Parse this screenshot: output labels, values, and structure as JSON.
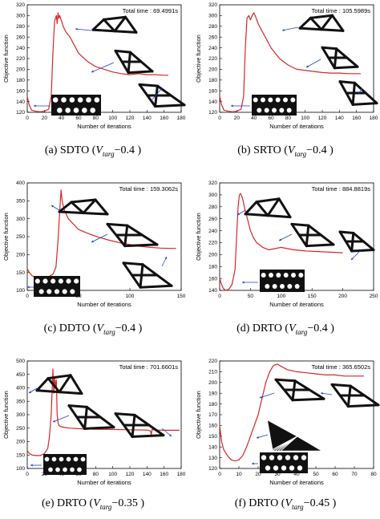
{
  "colors": {
    "curve": "#d62728",
    "arrow": "#1f3fd6",
    "axis": "#000000",
    "struct": "#111111"
  },
  "chart_data": [
    {
      "type": "line",
      "panel": "a",
      "caption_label": "(a) SDTO (",
      "caption_var": "V",
      "caption_sub": "targ",
      "caption_value": "−0.4 )",
      "annotation": "Total time : 69.4991s",
      "xlabel": "Number of iterations",
      "ylabel": "Objective function",
      "xlim": [
        0,
        180
      ],
      "ylim": [
        120,
        320
      ],
      "xticks": [
        0,
        20,
        40,
        60,
        80,
        100,
        120,
        140,
        160,
        180
      ],
      "yticks": [
        120,
        140,
        160,
        180,
        200,
        220,
        240,
        260,
        280,
        300,
        320
      ],
      "x": [
        0,
        2,
        5,
        10,
        15,
        20,
        25,
        28,
        30,
        32,
        34,
        35,
        36,
        37,
        38,
        40,
        42,
        45,
        50,
        55,
        60,
        70,
        80,
        90,
        100,
        110,
        120,
        130,
        140,
        150,
        160,
        165
      ],
      "y": [
        150,
        135,
        124,
        122,
        121,
        122,
        126,
        150,
        230,
        290,
        300,
        285,
        305,
        295,
        300,
        290,
        280,
        270,
        260,
        245,
        230,
        215,
        205,
        200,
        195,
        192,
        190,
        192,
        190,
        190,
        189,
        189
      ]
    },
    {
      "type": "line",
      "panel": "b",
      "caption_label": "(b) SRTO (",
      "caption_var": "V",
      "caption_sub": "targ",
      "caption_value": "−0.4 )",
      "annotation": "Total time : 105.5989s",
      "xlabel": "Number of iterations",
      "ylabel": "Objective function",
      "xlim": [
        0,
        180
      ],
      "ylim": [
        120,
        320
      ],
      "xticks": [
        0,
        20,
        40,
        60,
        80,
        100,
        120,
        140,
        160,
        180
      ],
      "yticks": [
        120,
        140,
        160,
        180,
        200,
        220,
        240,
        260,
        280,
        300,
        320
      ],
      "x": [
        0,
        2,
        5,
        10,
        15,
        20,
        25,
        28,
        30,
        32,
        34,
        36,
        38,
        40,
        42,
        45,
        50,
        55,
        60,
        70,
        80,
        90,
        100,
        110,
        120,
        130,
        140,
        150,
        160,
        165
      ],
      "y": [
        150,
        135,
        124,
        122,
        121,
        122,
        126,
        150,
        240,
        295,
        300,
        292,
        300,
        305,
        298,
        285,
        270,
        255,
        240,
        220,
        208,
        200,
        198,
        196,
        194,
        193,
        193,
        192,
        192,
        192
      ]
    },
    {
      "type": "line",
      "panel": "c",
      "caption_label": "(c) DDTO (",
      "caption_var": "V",
      "caption_sub": "targ",
      "caption_value": "−0.4 )",
      "annotation": "Total time : 159.3062s",
      "xlabel": "Number of iterations",
      "ylabel": "Objective function",
      "xlim": [
        0,
        150
      ],
      "ylim": [
        100,
        400
      ],
      "xticks": [
        0,
        50,
        100,
        150
      ],
      "yticks": [
        100,
        150,
        200,
        250,
        300,
        350,
        400
      ],
      "x": [
        0,
        2,
        5,
        10,
        15,
        20,
        25,
        28,
        30,
        32,
        33,
        34,
        36,
        40,
        45,
        50,
        60,
        70,
        80,
        90,
        100,
        110,
        120,
        130,
        140,
        145
      ],
      "y": [
        160,
        150,
        140,
        135,
        135,
        137,
        145,
        165,
        240,
        340,
        380,
        350,
        325,
        300,
        285,
        270,
        258,
        248,
        240,
        233,
        228,
        223,
        220,
        218,
        217,
        217
      ]
    },
    {
      "type": "line",
      "panel": "d",
      "caption_label": "(d) DRTO (",
      "caption_var": "V",
      "caption_sub": "targ",
      "caption_value": "−0.4 )",
      "annotation": "Total time : 884.8819s",
      "xlabel": "Number of iterations",
      "ylabel": "Objective function",
      "xlim": [
        0,
        250
      ],
      "ylim": [
        140,
        320
      ],
      "xticks": [
        0,
        50,
        100,
        150,
        200,
        250
      ],
      "yticks": [
        140,
        160,
        180,
        200,
        220,
        240,
        260,
        280,
        300,
        320
      ],
      "x": [
        0,
        3,
        6,
        10,
        15,
        20,
        25,
        28,
        30,
        32,
        34,
        36,
        38,
        40,
        45,
        50,
        55,
        60,
        70,
        80,
        90,
        100,
        110,
        120,
        140,
        160,
        180,
        200
      ],
      "y": [
        160,
        150,
        143,
        140,
        142,
        150,
        175,
        240,
        280,
        300,
        302,
        298,
        290,
        280,
        260,
        240,
        228,
        220,
        212,
        208,
        210,
        212,
        210,
        208,
        206,
        205,
        204,
        203
      ]
    },
    {
      "type": "line",
      "panel": "e",
      "caption_label": "(e) DRTO (",
      "caption_var": "V",
      "caption_sub": "targ",
      "caption_value": "−0.35 )",
      "annotation": "Total time : 701.6601s",
      "xlabel": "Number of iterations",
      "ylabel": "Objective function",
      "xlim": [
        0,
        180
      ],
      "ylim": [
        100,
        500
      ],
      "xticks": [
        0,
        20,
        40,
        60,
        80,
        100,
        120,
        140,
        160,
        180
      ],
      "yticks": [
        100,
        150,
        200,
        250,
        300,
        350,
        400,
        450,
        500
      ],
      "x": [
        0,
        3,
        6,
        10,
        15,
        20,
        24,
        26,
        28,
        30,
        31,
        32,
        33,
        34,
        35,
        36,
        37,
        38,
        40,
        45,
        50,
        60,
        80,
        100,
        120,
        140,
        144,
        145,
        146,
        150,
        160,
        170,
        178
      ],
      "y": [
        165,
        155,
        150,
        148,
        148,
        155,
        175,
        220,
        300,
        470,
        380,
        440,
        400,
        430,
        300,
        270,
        260,
        258,
        255,
        252,
        250,
        248,
        246,
        245,
        244,
        243,
        240,
        225,
        245,
        243,
        242,
        242,
        242
      ]
    },
    {
      "type": "line",
      "panel": "f",
      "caption_label": "(f) DRTO (",
      "caption_var": "V",
      "caption_sub": "targ",
      "caption_value": "−0.45 )",
      "annotation": "Total time : 365.6502s",
      "xlabel": "Number of iterations",
      "ylabel": "Objective function",
      "xlim": [
        0,
        80
      ],
      "ylim": [
        120,
        220
      ],
      "xticks": [
        0,
        10,
        20,
        30,
        40,
        50,
        60,
        70,
        80
      ],
      "yticks": [
        120,
        130,
        140,
        150,
        160,
        170,
        180,
        190,
        200,
        210,
        220
      ],
      "x": [
        0,
        1,
        2,
        4,
        6,
        8,
        10,
        12,
        14,
        16,
        18,
        20,
        22,
        24,
        26,
        28,
        30,
        32,
        35,
        40,
        45,
        50,
        55,
        60,
        65,
        70,
        75
      ],
      "y": [
        160,
        145,
        138,
        132,
        128,
        127,
        128,
        132,
        140,
        150,
        160,
        170,
        185,
        200,
        210,
        216,
        217,
        215,
        212,
        210,
        209,
        208,
        207,
        207,
        206,
        206,
        206
      ]
    }
  ]
}
